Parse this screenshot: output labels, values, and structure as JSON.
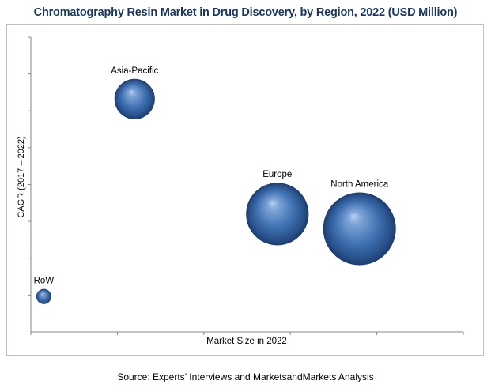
{
  "title": "Chromatography Resin Market in Drug Discovery, by Region, 2022 (USD Million)",
  "source": "Source: Experts’ Interviews and MarketsandMarkets Analysis",
  "colors": {
    "title": "#17375e",
    "bubble": "#3e6fb0",
    "axis": "#868686",
    "frame": "#bfbfbf"
  },
  "chart_data": {
    "type": "scatter",
    "variant": "bubble",
    "xlabel": "Market Size in 2022",
    "ylabel": "CAGR (2017 – 2022)",
    "grid": false,
    "legend": "none",
    "xlim": [
      0,
      100
    ],
    "ylim": [
      0,
      100
    ],
    "points": [
      {
        "label": "Asia-Pacific",
        "x": 24,
        "y": 79,
        "size": 40
      },
      {
        "label": "Europe",
        "x": 57,
        "y": 40,
        "size": 62
      },
      {
        "label": "North America",
        "x": 76,
        "y": 35,
        "size": 72
      },
      {
        "label": "RoW",
        "x": 3,
        "y": 12,
        "size": 15
      }
    ]
  }
}
